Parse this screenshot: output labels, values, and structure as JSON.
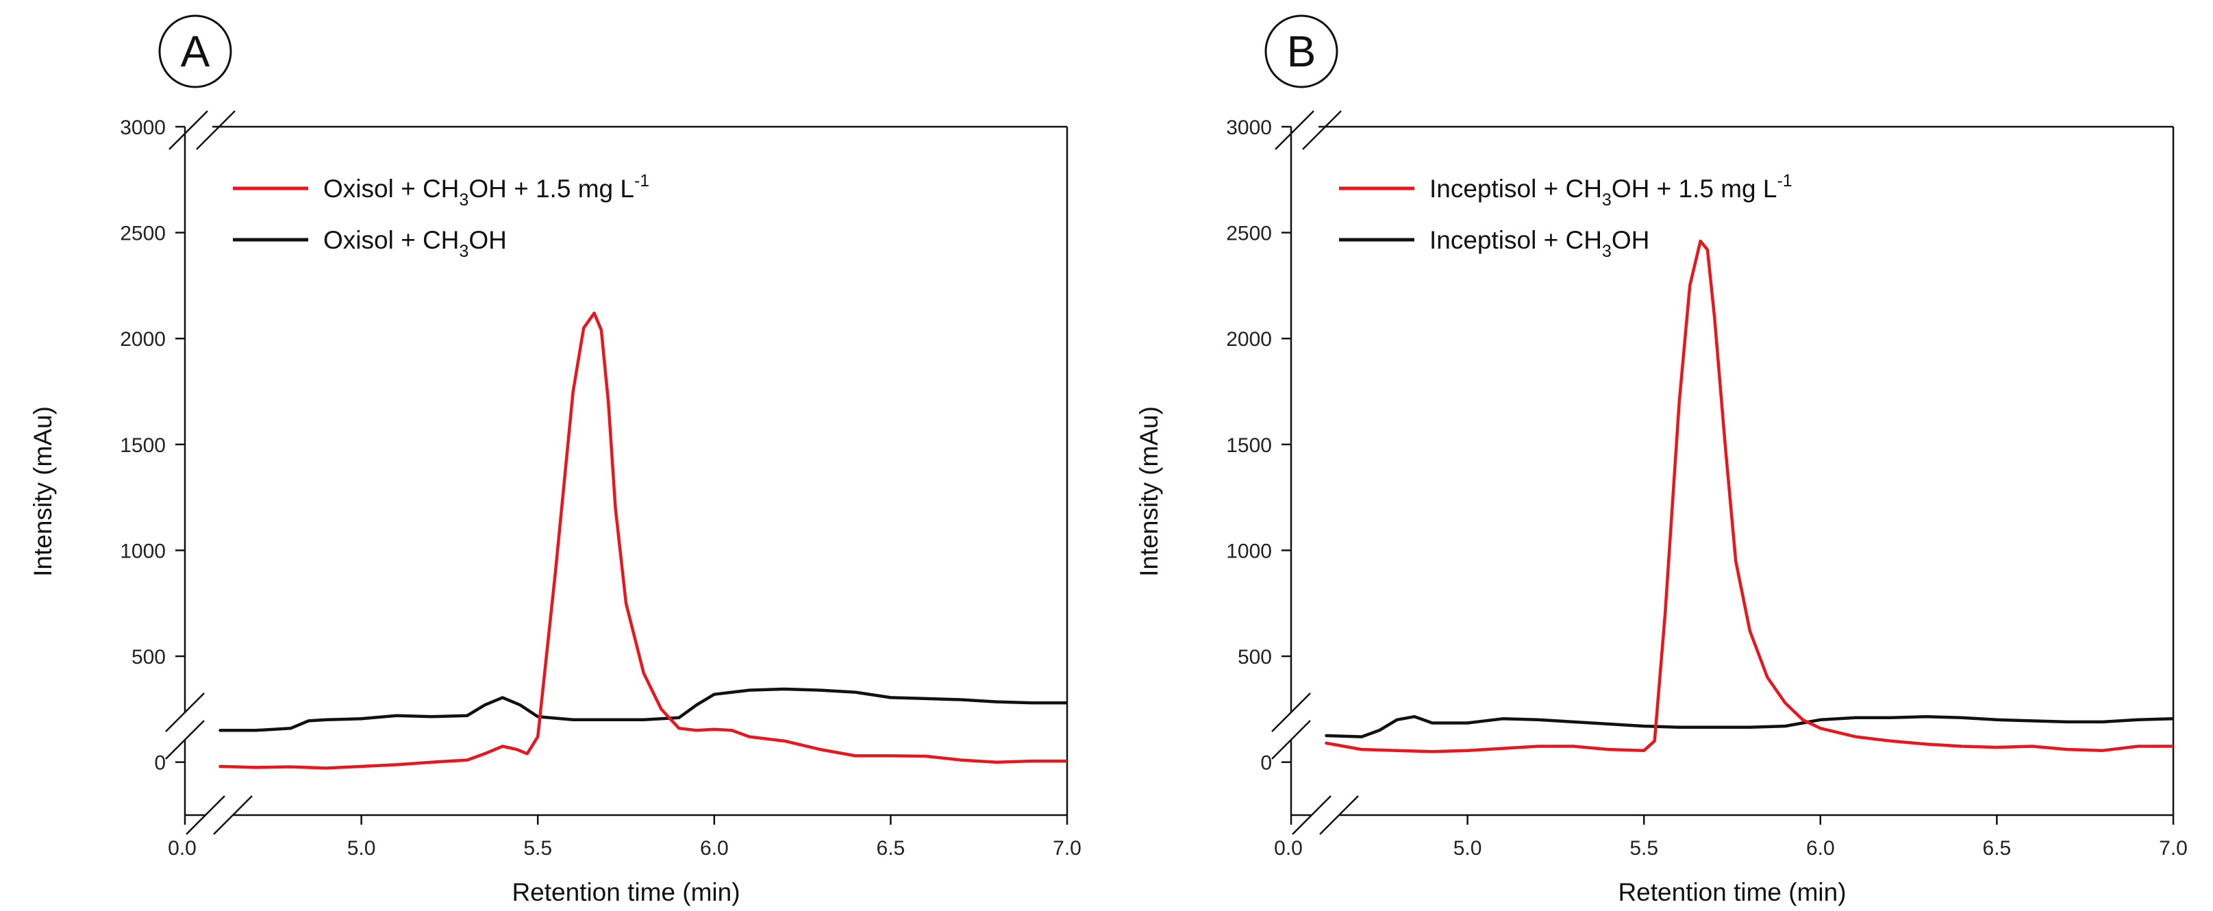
{
  "chart_data": [
    {
      "type": "line",
      "panel_label": "A",
      "xlabel": "Retention time (min)",
      "ylabel": "Intensity (mAu)",
      "x_break_label": "0.0",
      "xlim": [
        4.5,
        7.0
      ],
      "xticks": [
        5.0,
        5.5,
        6.0,
        6.5,
        7.0
      ],
      "xtick_labels": [
        "5.0",
        "5.5",
        "6.0",
        "6.5",
        "7.0"
      ],
      "ylim": [
        -250,
        3000
      ],
      "yticks": [
        0,
        500,
        1000,
        1500,
        2000,
        2500,
        3000
      ],
      "ytick_labels": [
        "0",
        "500",
        "1000",
        "1500",
        "2000",
        "2500",
        "3000"
      ],
      "axis_break": true,
      "legend_position": "top-left",
      "series": [
        {
          "name": "Oxisol + CH3OH + 1.5 mg L-1",
          "legend_main": "Oxisol + CH",
          "legend_sub": "3",
          "legend_rest": "OH + 1.5 mg L",
          "legend_sup": "-1",
          "color": "#e8171d",
          "x": [
            4.6,
            4.7,
            4.8,
            4.9,
            5.0,
            5.1,
            5.2,
            5.3,
            5.35,
            5.4,
            5.44,
            5.47,
            5.5,
            5.55,
            5.6,
            5.63,
            5.66,
            5.68,
            5.7,
            5.72,
            5.75,
            5.8,
            5.85,
            5.9,
            5.95,
            6.0,
            6.05,
            6.1,
            6.2,
            6.3,
            6.4,
            6.5,
            6.6,
            6.7,
            6.8,
            6.9,
            7.0
          ],
          "y": [
            -20,
            -25,
            -22,
            -28,
            -20,
            -12,
            0,
            10,
            40,
            75,
            60,
            40,
            120,
            900,
            1750,
            2050,
            2120,
            2040,
            1700,
            1200,
            750,
            420,
            250,
            160,
            150,
            155,
            150,
            120,
            100,
            60,
            30,
            30,
            28,
            10,
            0,
            5,
            5
          ]
        },
        {
          "name": "Oxisol + CH3OH",
          "legend_main": "Oxisol + CH",
          "legend_sub": "3",
          "legend_rest": "OH",
          "legend_sup": "",
          "color": "#111111",
          "x": [
            4.6,
            4.7,
            4.8,
            4.85,
            4.9,
            5.0,
            5.1,
            5.2,
            5.3,
            5.35,
            5.4,
            5.45,
            5.5,
            5.6,
            5.7,
            5.8,
            5.9,
            5.95,
            6.0,
            6.05,
            6.1,
            6.2,
            6.3,
            6.4,
            6.5,
            6.6,
            6.7,
            6.8,
            6.9,
            7.0
          ],
          "y": [
            150,
            150,
            160,
            195,
            200,
            205,
            220,
            215,
            220,
            270,
            305,
            270,
            215,
            200,
            200,
            200,
            210,
            270,
            320,
            330,
            340,
            345,
            340,
            330,
            305,
            300,
            295,
            285,
            280,
            280
          ]
        }
      ]
    },
    {
      "type": "line",
      "panel_label": "B",
      "xlabel": "Retention time (min)",
      "ylabel": "Intensity (mAu)",
      "x_break_label": "0.0",
      "xlim": [
        4.5,
        7.0
      ],
      "xticks": [
        5.0,
        5.5,
        6.0,
        6.5,
        7.0
      ],
      "xtick_labels": [
        "5.0",
        "5.5",
        "6.0",
        "6.5",
        "7.0"
      ],
      "ylim": [
        -250,
        3000
      ],
      "yticks": [
        0,
        500,
        1000,
        1500,
        2000,
        2500,
        3000
      ],
      "ytick_labels": [
        "0",
        "500",
        "1000",
        "1500",
        "2000",
        "2500",
        "3000"
      ],
      "axis_break": true,
      "legend_position": "top-left",
      "series": [
        {
          "name": "Inceptisol + CH3OH + 1.5 mg L-1",
          "legend_main": "Inceptisol + CH",
          "legend_sub": "3",
          "legend_rest": "OH + 1.5 mg L",
          "legend_sup": "-1",
          "color": "#e8171d",
          "x": [
            4.6,
            4.7,
            4.8,
            4.9,
            5.0,
            5.1,
            5.2,
            5.3,
            5.4,
            5.5,
            5.53,
            5.56,
            5.6,
            5.63,
            5.66,
            5.68,
            5.7,
            5.73,
            5.76,
            5.8,
            5.85,
            5.9,
            5.95,
            6.0,
            6.1,
            6.2,
            6.3,
            6.4,
            6.5,
            6.6,
            6.7,
            6.8,
            6.9,
            7.0
          ],
          "y": [
            90,
            60,
            55,
            50,
            55,
            65,
            75,
            75,
            60,
            55,
            100,
            700,
            1700,
            2250,
            2460,
            2420,
            2100,
            1500,
            950,
            620,
            400,
            280,
            200,
            160,
            120,
            100,
            85,
            75,
            70,
            75,
            60,
            55,
            75,
            75
          ]
        },
        {
          "name": "Inceptisol + CH3OH",
          "legend_main": "Inceptisol + CH",
          "legend_sub": "3",
          "legend_rest": "OH",
          "legend_sup": "",
          "color": "#111111",
          "x": [
            4.6,
            4.7,
            4.75,
            4.8,
            4.85,
            4.9,
            5.0,
            5.1,
            5.2,
            5.3,
            5.4,
            5.5,
            5.6,
            5.7,
            5.8,
            5.9,
            5.95,
            6.0,
            6.1,
            6.2,
            6.3,
            6.4,
            6.5,
            6.6,
            6.7,
            6.8,
            6.9,
            7.0
          ],
          "y": [
            125,
            120,
            150,
            200,
            215,
            185,
            185,
            205,
            200,
            190,
            180,
            170,
            165,
            165,
            165,
            170,
            185,
            200,
            210,
            210,
            215,
            210,
            200,
            195,
            190,
            190,
            200,
            205
          ]
        }
      ]
    }
  ]
}
